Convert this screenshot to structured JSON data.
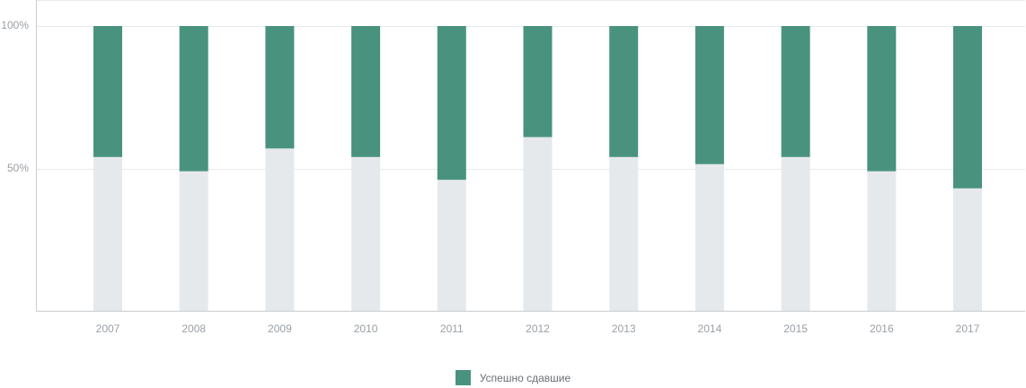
{
  "chart_data": {
    "type": "bar",
    "stacked": true,
    "categories": [
      "2007",
      "2008",
      "2009",
      "2010",
      "2011",
      "2012",
      "2013",
      "2014",
      "2015",
      "2016",
      "2017"
    ],
    "series": [
      {
        "name": "Успешно сдавшие",
        "color": "#49937e",
        "values": [
          46,
          51,
          43,
          46,
          54,
          39,
          46,
          48.5,
          46,
          51,
          57
        ]
      },
      {
        "name": "",
        "color": "#e6e9ec",
        "values": [
          54,
          49,
          57,
          54,
          46,
          61,
          54,
          51.5,
          54,
          49,
          43
        ]
      }
    ],
    "y_ticks": [
      "100%",
      "50%"
    ],
    "ylim": [
      0,
      100
    ],
    "grid": true,
    "legend_position": "bottom-center",
    "legend": {
      "label": "Успешно сдавшие",
      "color": "#49937e"
    }
  }
}
